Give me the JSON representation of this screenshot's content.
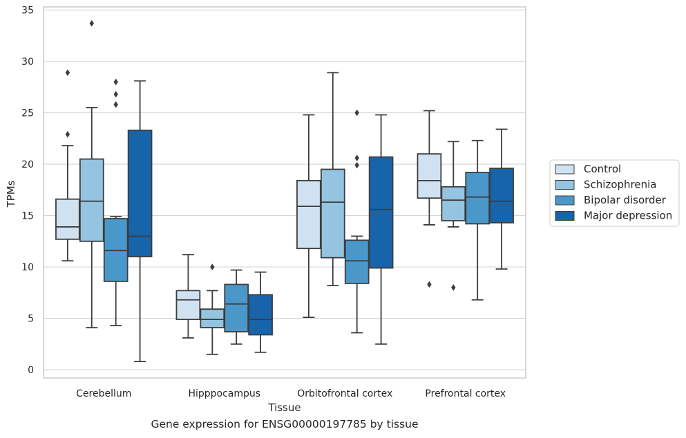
{
  "caption": "Gene expression for ENSG00000197785 by tissue",
  "chart_data": {
    "type": "box",
    "xlabel": "Tissue",
    "ylabel": "TPMs",
    "ylim": [
      -0.8,
      35.3
    ],
    "yticks": [
      0,
      5,
      10,
      15,
      20,
      25,
      30,
      35
    ],
    "grid": "horizontal",
    "legend_position": "right",
    "categories": [
      "Cerebellum",
      "Hipppocampus",
      "Orbitofrontal cortex",
      "Prefrontal cortex"
    ],
    "series": [
      {
        "name": "Control",
        "color": "#d0e1f2",
        "boxes": [
          {
            "whislo": 10.6,
            "q1": 12.7,
            "med": 13.9,
            "q3": 16.6,
            "whishi": 21.8,
            "fliers": [
              22.9,
              28.9
            ]
          },
          {
            "whislo": 3.1,
            "q1": 4.9,
            "med": 6.8,
            "q3": 7.7,
            "whishi": 11.2,
            "fliers": []
          },
          {
            "whislo": 5.1,
            "q1": 11.8,
            "med": 15.9,
            "q3": 18.4,
            "whishi": 24.8,
            "fliers": []
          },
          {
            "whislo": 14.1,
            "q1": 16.7,
            "med": 18.4,
            "q3": 21.0,
            "whishi": 25.2,
            "fliers": [
              8.3
            ]
          }
        ]
      },
      {
        "name": "Schizophrenia",
        "color": "#94c4df",
        "boxes": [
          {
            "whislo": 4.1,
            "q1": 12.5,
            "med": 16.4,
            "q3": 20.5,
            "whishi": 25.5,
            "fliers": [
              33.7
            ]
          },
          {
            "whislo": 1.5,
            "q1": 4.1,
            "med": 4.9,
            "q3": 5.9,
            "whishi": 7.7,
            "fliers": [
              10.0
            ]
          },
          {
            "whislo": 8.2,
            "q1": 10.9,
            "med": 16.3,
            "q3": 19.5,
            "whishi": 28.9,
            "fliers": []
          },
          {
            "whislo": 13.9,
            "q1": 14.5,
            "med": 16.5,
            "q3": 17.8,
            "whishi": 22.2,
            "fliers": [
              8.0
            ]
          }
        ]
      },
      {
        "name": "Bipolar disorder",
        "color": "#4a98c9",
        "boxes": [
          {
            "whislo": 4.3,
            "q1": 8.6,
            "med": 11.6,
            "q3": 14.7,
            "whishi": 14.9,
            "fliers": [
              25.8,
              26.8,
              28.0
            ]
          },
          {
            "whislo": 2.5,
            "q1": 3.7,
            "med": 6.4,
            "q3": 8.3,
            "whishi": 9.7,
            "fliers": []
          },
          {
            "whislo": 3.6,
            "q1": 8.4,
            "med": 10.6,
            "q3": 12.6,
            "whishi": 13.0,
            "fliers": [
              19.9,
              20.6,
              25.0
            ]
          },
          {
            "whislo": 6.8,
            "q1": 14.2,
            "med": 16.8,
            "q3": 19.2,
            "whishi": 22.3,
            "fliers": []
          }
        ]
      },
      {
        "name": "Major depression",
        "color": "#1764ab",
        "boxes": [
          {
            "whislo": 0.8,
            "q1": 11.0,
            "med": 13.0,
            "q3": 23.3,
            "whishi": 28.1,
            "fliers": []
          },
          {
            "whislo": 1.7,
            "q1": 3.4,
            "med": 4.9,
            "q3": 7.3,
            "whishi": 9.5,
            "fliers": []
          },
          {
            "whislo": 2.5,
            "q1": 9.9,
            "med": 15.6,
            "q3": 20.7,
            "whishi": 24.8,
            "fliers": []
          },
          {
            "whislo": 9.8,
            "q1": 14.3,
            "med": 16.4,
            "q3": 19.6,
            "whishi": 23.4,
            "fliers": []
          }
        ]
      }
    ]
  }
}
